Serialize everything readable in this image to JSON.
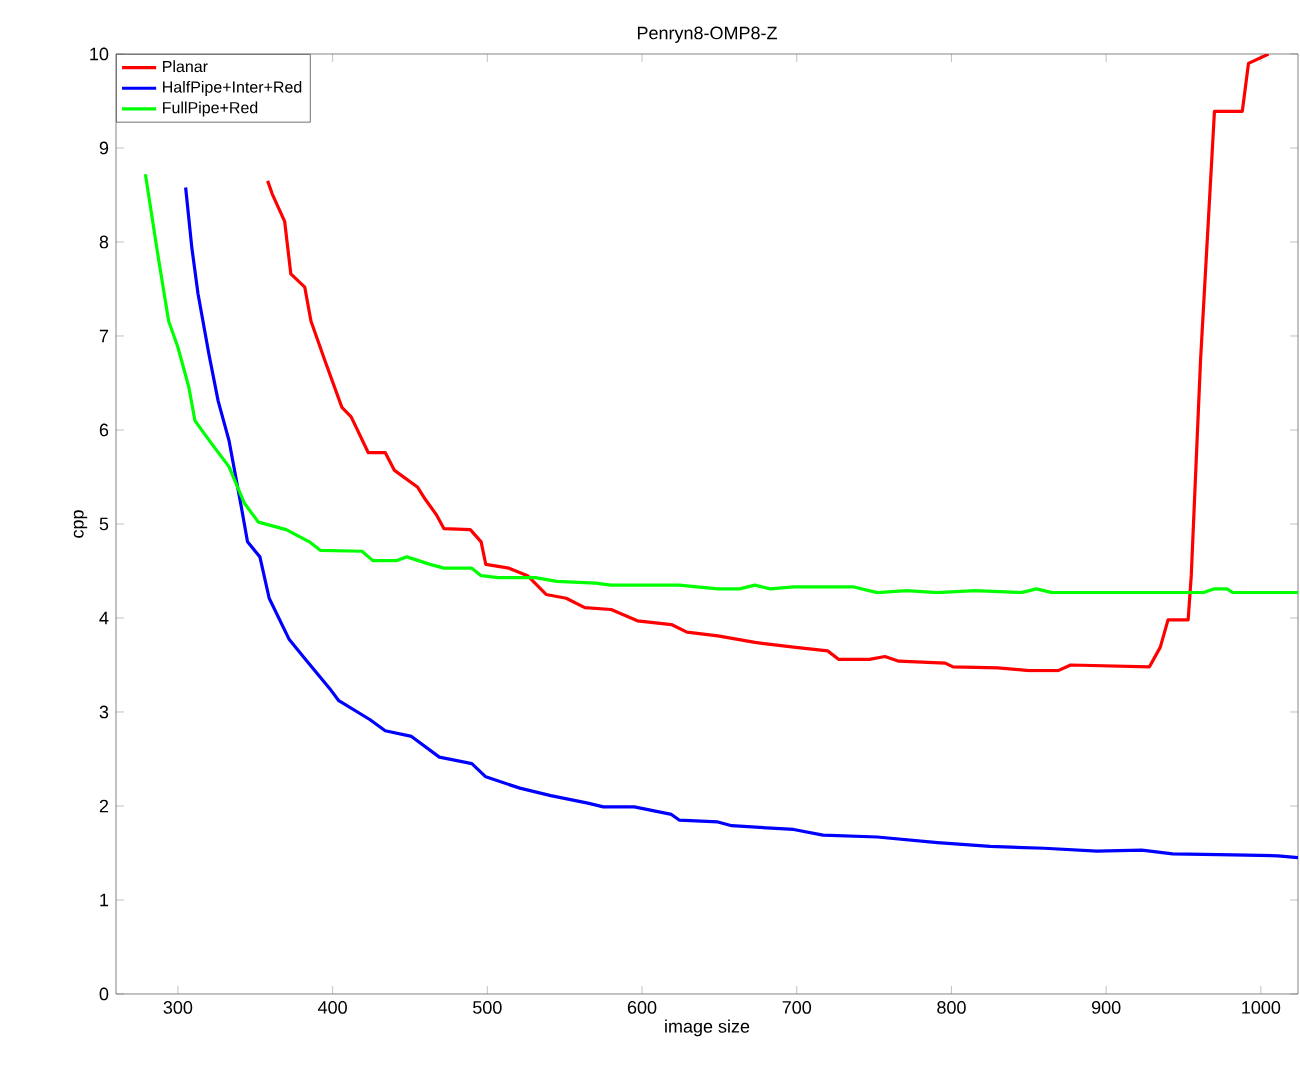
{
  "chart_data": {
    "type": "line",
    "title": "Penryn8-OMP8-Z",
    "xlabel": "image size",
    "ylabel": "cpp",
    "xlim": [
      260,
      1024
    ],
    "ylim": [
      0,
      10
    ],
    "xticks": [
      300,
      400,
      500,
      600,
      700,
      800,
      900,
      1000
    ],
    "yticks": [
      0,
      1,
      2,
      3,
      4,
      5,
      6,
      7,
      8,
      9,
      10
    ],
    "legend": "top left",
    "grid": false,
    "marker": "none",
    "line_style": "solid",
    "series": [
      {
        "name": "Planar",
        "color": "#ff0000",
        "x": [
          358,
          361,
          369,
          373,
          382,
          386,
          395,
          406,
          412,
          423,
          434,
          440,
          455,
          460,
          467,
          472,
          489,
          496,
          499,
          514,
          526,
          538,
          551,
          563,
          580,
          597,
          619,
          629,
          649,
          673,
          698,
          720,
          727,
          747,
          757,
          766,
          796,
          801,
          830,
          850,
          869,
          877,
          928,
          935,
          940,
          953,
          955,
          961,
          970,
          988,
          992,
          1005
        ],
        "values": [
          8.65,
          8.51,
          8.22,
          7.66,
          7.52,
          7.16,
          6.74,
          6.24,
          6.14,
          5.76,
          5.76,
          5.57,
          5.39,
          5.26,
          5.1,
          4.95,
          4.94,
          4.81,
          4.57,
          4.53,
          4.45,
          4.25,
          4.21,
          4.11,
          4.09,
          3.97,
          3.93,
          3.85,
          3.81,
          3.74,
          3.69,
          3.65,
          3.56,
          3.56,
          3.59,
          3.54,
          3.52,
          3.48,
          3.47,
          3.44,
          3.44,
          3.5,
          3.48,
          3.69,
          3.98,
          3.98,
          4.45,
          6.74,
          9.39,
          9.39,
          9.9,
          10
        ]
      },
      {
        "name": "HalfPipe+Inter+Red",
        "color": "#0000ff",
        "x": [
          305,
          309,
          313,
          320,
          326,
          333,
          341,
          345,
          353,
          359,
          372,
          382,
          399,
          404,
          424,
          434,
          451,
          469,
          490,
          499,
          521,
          541,
          565,
          575,
          595,
          619,
          624,
          649,
          658,
          698,
          717,
          752,
          791,
          825,
          860,
          894,
          923,
          943,
          982,
          1011,
          1024
        ],
        "values": [
          8.58,
          7.94,
          7.45,
          6.81,
          6.31,
          5.89,
          5.18,
          4.81,
          4.65,
          4.21,
          3.77,
          3.57,
          3.23,
          3.12,
          2.92,
          2.8,
          2.74,
          2.52,
          2.45,
          2.31,
          2.19,
          2.11,
          2.03,
          1.99,
          1.99,
          1.91,
          1.85,
          1.83,
          1.79,
          1.75,
          1.69,
          1.67,
          1.61,
          1.57,
          1.55,
          1.52,
          1.53,
          1.49,
          1.48,
          1.47,
          1.45
        ]
      },
      {
        "name": "FullPipe+Red",
        "color": "#00ff00",
        "x": [
          279,
          287,
          294,
          300,
          307,
          311,
          322,
          333,
          343,
          352,
          370,
          385,
          392,
          419,
          426,
          441,
          448,
          463,
          472,
          490,
          496,
          507,
          531,
          545,
          570,
          580,
          624,
          649,
          663,
          673,
          683,
          698,
          737,
          752,
          771,
          791,
          815,
          845,
          855,
          865,
          963,
          970,
          978,
          982,
          1024
        ],
        "values": [
          8.72,
          7.87,
          7.16,
          6.88,
          6.46,
          6.1,
          5.85,
          5.61,
          5.22,
          5.02,
          4.94,
          4.81,
          4.72,
          4.71,
          4.61,
          4.61,
          4.65,
          4.57,
          4.53,
          4.53,
          4.45,
          4.43,
          4.43,
          4.39,
          4.37,
          4.35,
          4.35,
          4.31,
          4.31,
          4.35,
          4.31,
          4.33,
          4.33,
          4.27,
          4.29,
          4.27,
          4.29,
          4.27,
          4.31,
          4.27,
          4.27,
          4.31,
          4.31,
          4.27,
          4.27
        ]
      }
    ]
  }
}
